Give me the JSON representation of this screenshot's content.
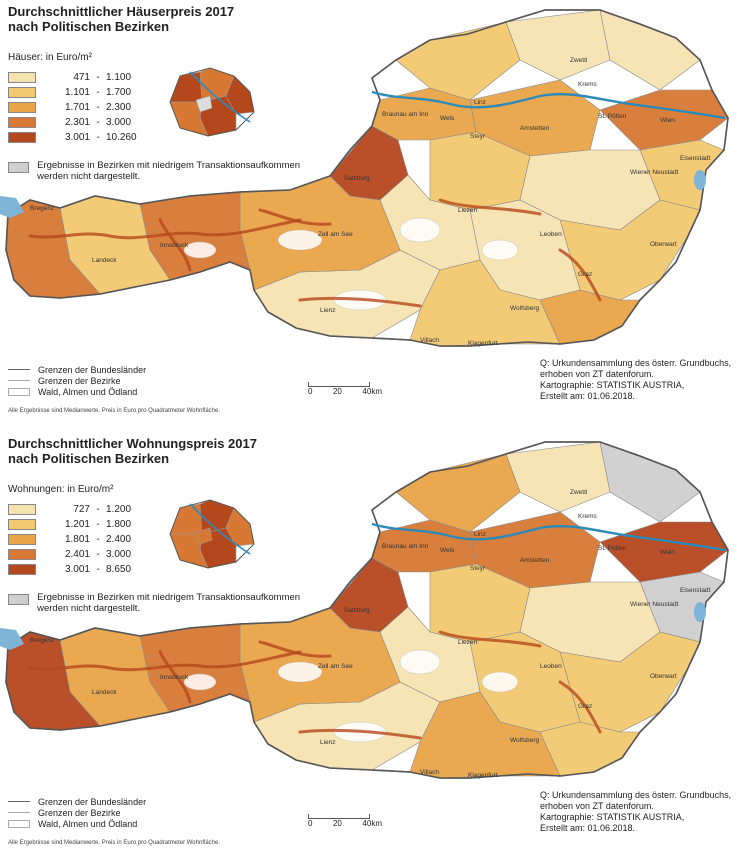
{
  "maps": [
    {
      "title": "Durchschnittlicher Häuserpreis 2017\nnach Politischen Bezirken",
      "legend_title": "Häuser:  in Euro/m²",
      "classes": [
        {
          "from": "471",
          "to": "1.100",
          "color": "#f7e3b0"
        },
        {
          "from": "1.101",
          "to": "1.700",
          "color": "#f2c870"
        },
        {
          "from": "1.701",
          "to": "2.300",
          "color": "#e9a448"
        },
        {
          "from": "2.301",
          "to": "3.000",
          "color": "#d77834"
        },
        {
          "from": "3.001",
          "to": "10.260",
          "color": "#b5471d"
        }
      ],
      "gray_note": "Ergebnisse in Bezirken mit niedrigem Transaktionsaufkommen werden nicht dargestellt.",
      "gray_color": "#cfcfcf"
    },
    {
      "title": "Durchschnittlicher Wohnungspreis 2017\nnach Politischen Bezirken",
      "legend_title": "Wohnungen:  in Euro/m²",
      "classes": [
        {
          "from": "727",
          "to": "1.200",
          "color": "#f7e3b0"
        },
        {
          "from": "1.201",
          "to": "1.800",
          "color": "#f2c870"
        },
        {
          "from": "1.801",
          "to": "2.400",
          "color": "#e9a448"
        },
        {
          "from": "2.401",
          "to": "3.000",
          "color": "#d77834"
        },
        {
          "from": "3.001",
          "to": "8.650",
          "color": "#b5471d"
        }
      ],
      "gray_note": "Ergebnisse in Bezirken mit niedrigem Transaktionsaufkommen werden nicht dargestellt.",
      "gray_color": "#cfcfcf"
    }
  ],
  "line_legend": {
    "state_borders": "Grenzen der Bundesländer",
    "district_borders": "Grenzen der Bezirke",
    "forest": "Wald, Almen und Ödland"
  },
  "footnote_top": "Alle Ergebnisse sind Medianwerte. Preis in Euro pro Quadratmeter Wohnfläche.",
  "footnote_bottom": "Alle Ergebnisse sind Medianwerte. Preis in Euro pro Quadratmeter Wohnfläche.",
  "source": {
    "line1": "Q: Urkundensammlung des österr. Grundbuchs,",
    "line2": "erhoben von ZT datenforum.",
    "line3": "Kartographie: STATISTIK AUSTRIA,",
    "line4": "Erstellt am: 01.06.2018."
  },
  "scale": {
    "l0": "0",
    "l1": "20",
    "l2": "40",
    "unit": "km"
  },
  "places": [
    "Bregenz",
    "Innsbruck",
    "Salzburg",
    "Linz",
    "St. Pölten",
    "Wien",
    "Eisenstadt",
    "Graz",
    "Klagenfurt",
    "Wiener Neustadt",
    "Steyr",
    "Amstetten",
    "Wels",
    "Leoben",
    "Villach",
    "Lienz",
    "Zell am See",
    "Landeck",
    "Braunau am Inn",
    "Krems",
    "Oberwart",
    "Wolfsberg",
    "Liezen",
    "Zwettl"
  ],
  "colors": {
    "danube": "#2e8ab8",
    "lake": "#7db4d8",
    "border": "#7a7a7a"
  }
}
